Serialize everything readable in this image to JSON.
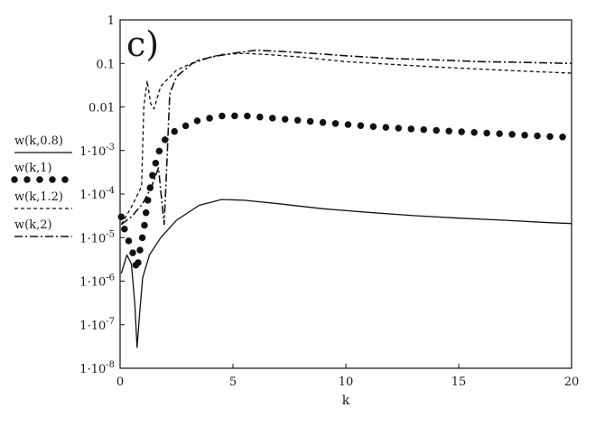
{
  "chart_data": {
    "type": "line",
    "panel_label": "c)",
    "xlabel": "k",
    "ylabel": "",
    "xlim": [
      0,
      20
    ],
    "ylim": [
      1e-08,
      1
    ],
    "yscale": "log",
    "grid": false,
    "legend_position": "left",
    "x_ticks": [
      {
        "value": 0,
        "label": "0"
      },
      {
        "value": 5,
        "label": "5"
      },
      {
        "value": 10,
        "label": "10"
      },
      {
        "value": 15,
        "label": "15"
      },
      {
        "value": 20,
        "label": "20"
      }
    ],
    "y_ticks": [
      {
        "value": 1,
        "mant": "1",
        "exp": ""
      },
      {
        "value": 0.1,
        "mant": "0.1",
        "exp": ""
      },
      {
        "value": 0.01,
        "mant": "0.01",
        "exp": ""
      },
      {
        "value": 0.001,
        "mant": "1·10",
        "exp": "-3"
      },
      {
        "value": 0.0001,
        "mant": "1·10",
        "exp": "-4"
      },
      {
        "value": 1e-05,
        "mant": "1·10",
        "exp": "-5"
      },
      {
        "value": 1e-06,
        "mant": "1·10",
        "exp": "-6"
      },
      {
        "value": 1e-07,
        "mant": "1·10",
        "exp": "-7"
      },
      {
        "value": 1e-08,
        "mant": "1·10",
        "exp": "-8"
      }
    ],
    "series": [
      {
        "name": "w(k,0.8)",
        "style": "solid",
        "color": "#111111",
        "points": [
          [
            0.05,
            1.5e-06
          ],
          [
            0.3,
            4e-06
          ],
          [
            0.5,
            2.5e-06
          ],
          [
            0.65,
            3e-07
          ],
          [
            0.75,
            3e-08
          ],
          [
            0.85,
            1.5e-07
          ],
          [
            1.0,
            1.2e-06
          ],
          [
            1.3,
            4e-06
          ],
          [
            1.8,
            1e-05
          ],
          [
            2.5,
            2.5e-05
          ],
          [
            3.5,
            5.5e-05
          ],
          [
            4.5,
            7.5e-05
          ],
          [
            5.5,
            7.2e-05
          ],
          [
            7,
            6e-05
          ],
          [
            9,
            4.6e-05
          ],
          [
            11,
            3.8e-05
          ],
          [
            13,
            3.2e-05
          ],
          [
            15,
            2.8e-05
          ],
          [
            17,
            2.5e-05
          ],
          [
            19,
            2.2e-05
          ],
          [
            20,
            2.1e-05
          ]
        ]
      },
      {
        "name": "w(k,1)",
        "style": "dotted-heavy",
        "color": "#111111",
        "points": [
          [
            0.05,
            3e-05
          ],
          [
            0.25,
            1.2e-05
          ],
          [
            0.5,
            6e-06
          ],
          [
            0.75,
            1.8e-06
          ],
          [
            0.9,
            6e-06
          ],
          [
            1.05,
            1.5e-05
          ],
          [
            1.2,
            6e-05
          ],
          [
            1.45,
            0.0003
          ],
          [
            1.7,
            0.0009
          ],
          [
            2.0,
            0.0018
          ],
          [
            2.5,
            0.003
          ],
          [
            3.5,
            0.005
          ],
          [
            4.5,
            0.0062
          ],
          [
            5.5,
            0.0063
          ],
          [
            7,
            0.0054
          ],
          [
            9,
            0.0044
          ],
          [
            11,
            0.0036
          ],
          [
            13,
            0.0031
          ],
          [
            15,
            0.0027
          ],
          [
            17,
            0.0024
          ],
          [
            19,
            0.0021
          ],
          [
            20,
            0.002
          ]
        ]
      },
      {
        "name": "w(k,1.2)",
        "style": "dashed",
        "color": "#111111",
        "points": [
          [
            0.05,
            2e-05
          ],
          [
            0.5,
            5e-05
          ],
          [
            0.95,
            0.00015
          ],
          [
            1.05,
            0.01
          ],
          [
            1.2,
            0.04
          ],
          [
            1.35,
            0.012
          ],
          [
            1.5,
            0.009
          ],
          [
            1.8,
            0.03
          ],
          [
            2.5,
            0.07
          ],
          [
            3.5,
            0.12
          ],
          [
            4.5,
            0.16
          ],
          [
            5.5,
            0.17
          ],
          [
            6.5,
            0.16
          ],
          [
            8,
            0.14
          ],
          [
            10,
            0.11
          ],
          [
            12,
            0.095
          ],
          [
            14,
            0.083
          ],
          [
            16,
            0.074
          ],
          [
            18,
            0.066
          ],
          [
            20,
            0.06
          ]
        ]
      },
      {
        "name": "w(k,2)",
        "style": "dashdot",
        "color": "#111111",
        "points": [
          [
            0.05,
            2e-05
          ],
          [
            0.5,
            3e-05
          ],
          [
            1.0,
            6e-05
          ],
          [
            1.4,
            0.00015
          ],
          [
            1.7,
            0.0004
          ],
          [
            1.95,
            2e-05
          ],
          [
            2.05,
            0.0003
          ],
          [
            2.2,
            0.02
          ],
          [
            2.5,
            0.05
          ],
          [
            3.2,
            0.1
          ],
          [
            4,
            0.14
          ],
          [
            5,
            0.17
          ],
          [
            6,
            0.2
          ],
          [
            7,
            0.19
          ],
          [
            8.5,
            0.17
          ],
          [
            10,
            0.15
          ],
          [
            12,
            0.13
          ],
          [
            14,
            0.12
          ],
          [
            16,
            0.11
          ],
          [
            18,
            0.105
          ],
          [
            20,
            0.1
          ]
        ]
      }
    ]
  }
}
